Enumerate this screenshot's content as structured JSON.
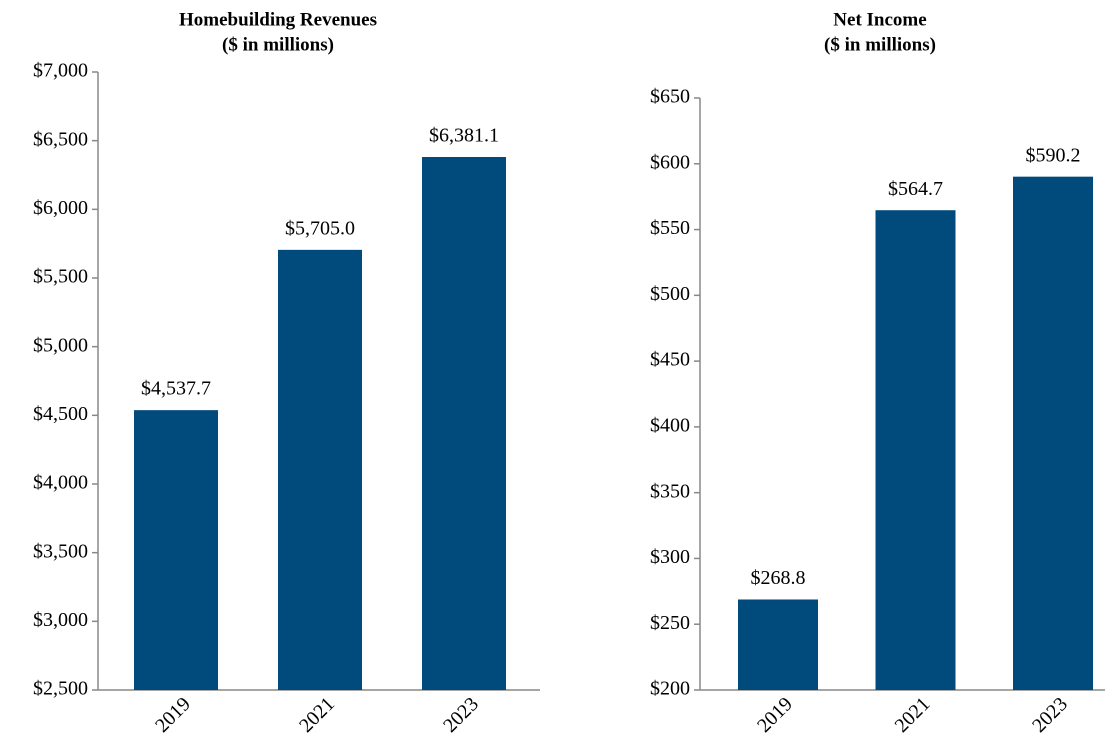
{
  "chart_data": [
    {
      "type": "bar",
      "title": "Homebuilding Revenues",
      "subtitle": "($ in millions)",
      "categories": [
        "2019",
        "2021",
        "2023"
      ],
      "values": [
        4537.7,
        5705.0,
        6381.1
      ],
      "value_labels": [
        "$4,537.7",
        "$5,705.0",
        "$6,381.1"
      ],
      "color": "#004a7c",
      "ylim": [
        2500,
        7000
      ],
      "yticks": [
        {
          "value": 2500,
          "label": "$2,500"
        },
        {
          "value": 3000,
          "label": "$3,000"
        },
        {
          "value": 3500,
          "label": "$3,500"
        },
        {
          "value": 4000,
          "label": "$4,000"
        },
        {
          "value": 4500,
          "label": "$4,500"
        },
        {
          "value": 5000,
          "label": "$5,000"
        },
        {
          "value": 5500,
          "label": "$5,500"
        },
        {
          "value": 6000,
          "label": "$6,000"
        },
        {
          "value": 6500,
          "label": "$6,500"
        },
        {
          "value": 7000,
          "label": "$7,000"
        }
      ],
      "grid": false
    },
    {
      "type": "bar",
      "title": "Net Income",
      "subtitle": "($ in millions)",
      "categories": [
        "2019",
        "2021",
        "2023"
      ],
      "values": [
        268.8,
        564.7,
        590.2
      ],
      "value_labels": [
        "$268.8",
        "$564.7",
        "$590.2"
      ],
      "color": "#004a7c",
      "ylim": [
        200,
        650
      ],
      "yticks": [
        {
          "value": 200,
          "label": "$200"
        },
        {
          "value": 250,
          "label": "$250"
        },
        {
          "value": 300,
          "label": "$300"
        },
        {
          "value": 350,
          "label": "$350"
        },
        {
          "value": 400,
          "label": "$400"
        },
        {
          "value": 450,
          "label": "$450"
        },
        {
          "value": 500,
          "label": "$500"
        },
        {
          "value": 550,
          "label": "$550"
        },
        {
          "value": 600,
          "label": "$600"
        },
        {
          "value": 650,
          "label": "$650"
        }
      ],
      "grid": false
    }
  ]
}
